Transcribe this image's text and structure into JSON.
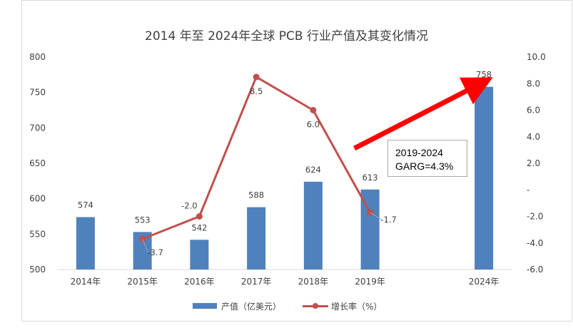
{
  "chart_data": {
    "type": "bar+line",
    "title": "2014 年至 2024年全球 PCB 行业产值及其变化情况",
    "categories": [
      "2014年",
      "2015年",
      "2016年",
      "2017年",
      "2018年",
      "2019年",
      "2024年"
    ],
    "series": [
      {
        "name": "产值（亿美元）",
        "type": "bar",
        "axis": "left",
        "values": [
          574,
          553,
          542,
          588,
          624,
          613,
          758
        ]
      },
      {
        "name": "增长率（%）",
        "type": "line",
        "axis": "right",
        "values": [
          null,
          -3.7,
          -2.0,
          8.5,
          6.0,
          -1.7,
          null
        ]
      }
    ],
    "y_left": {
      "ylim": [
        500,
        800
      ],
      "ticks": [
        "500",
        "550",
        "600",
        "650",
        "700",
        "750",
        "800"
      ]
    },
    "y_right": {
      "ylim": [
        -6.0,
        10.0
      ],
      "ticks": [
        "-6.0",
        "-4.0",
        "-2.0",
        "-",
        "2.0",
        "4.0",
        "6.0",
        "8.0",
        "10.0"
      ]
    },
    "annotation": {
      "line1": "2019-2024",
      "line2": "GARG=4.3%"
    },
    "trend_arrow": "red arrow rising from 2019 toward 2024",
    "legend": "bottom",
    "grid": false,
    "colors": {
      "bar": "#4f81bd",
      "line": "#c0504d",
      "arrow": "#ff0000"
    }
  }
}
